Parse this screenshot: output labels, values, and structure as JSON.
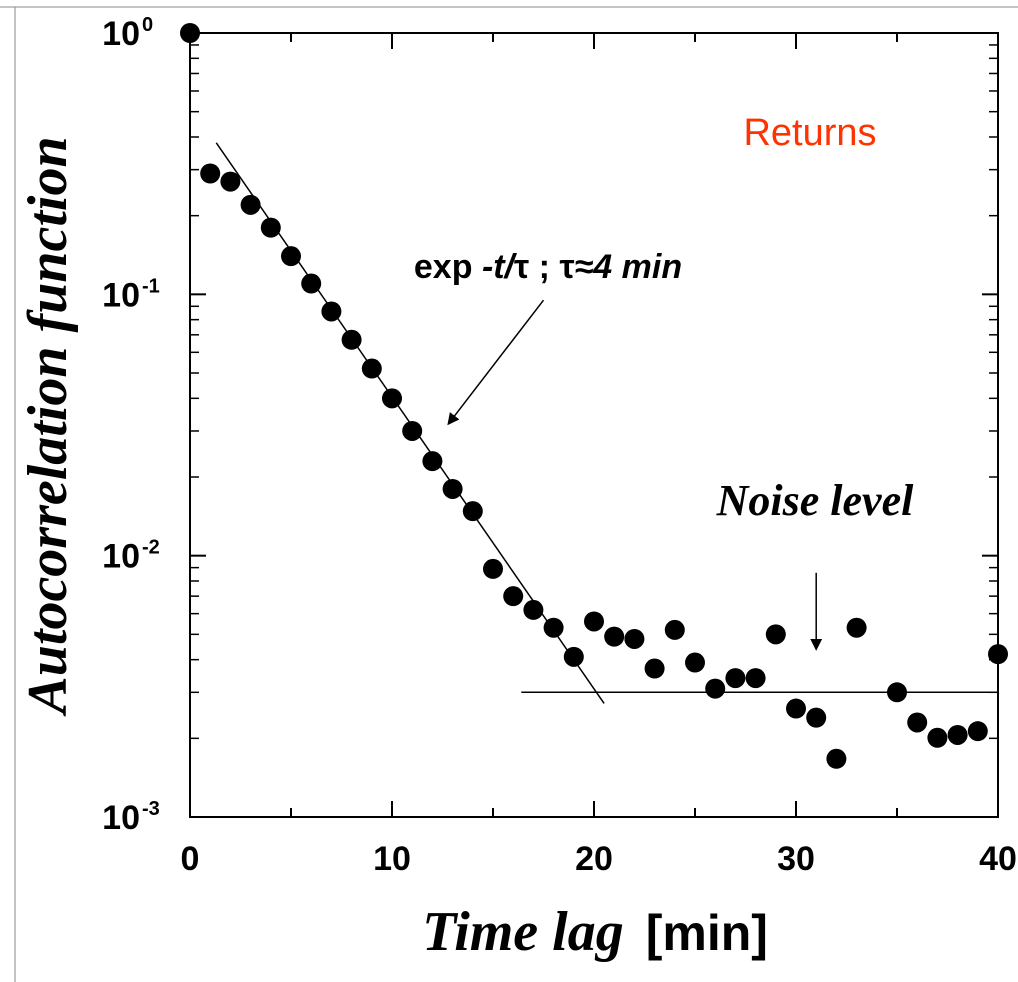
{
  "chart_data": {
    "type": "scatter",
    "xlabel": {
      "italic": "Time lag",
      "unit": "[min]"
    },
    "ylabel": "Autocorrelation function",
    "xlim": [
      0,
      40
    ],
    "ylim": [
      0.001,
      1
    ],
    "yscale": "log",
    "x_ticks": [
      "0",
      "10",
      "20",
      "30",
      "40"
    ],
    "y_ticks": [
      {
        "base": "10",
        "exp": "0"
      },
      {
        "base": "10",
        "exp": "-1"
      },
      {
        "base": "10",
        "exp": "-2"
      },
      {
        "base": "10",
        "exp": "-3"
      }
    ],
    "grid": false,
    "series": [
      {
        "name": "Returns",
        "color": "#ff3300",
        "marker_color": "#000000",
        "x": [
          0,
          1,
          2,
          3,
          4,
          5,
          6,
          7,
          8,
          9,
          10,
          11,
          12,
          13,
          14,
          15,
          16,
          17,
          18,
          19,
          20,
          21,
          22,
          23,
          24,
          25,
          26,
          27,
          28,
          29,
          30,
          31,
          32,
          33,
          35,
          36,
          37,
          38,
          39,
          40
        ],
        "y": [
          1.0,
          0.29,
          0.27,
          0.22,
          0.18,
          0.14,
          0.11,
          0.086,
          0.067,
          0.052,
          0.04,
          0.03,
          0.023,
          0.018,
          0.0148,
          0.0089,
          0.007,
          0.0062,
          0.0053,
          0.0041,
          0.0056,
          0.0049,
          0.0048,
          0.0037,
          0.0052,
          0.0039,
          0.0031,
          0.0034,
          0.0034,
          0.005,
          0.0026,
          0.0024,
          0.00167,
          0.0053,
          0.003,
          0.0023,
          0.00201,
          0.00206,
          0.00213,
          0.0042
        ]
      }
    ],
    "fit_line": {
      "x": [
        1.3,
        20.5
      ],
      "y": [
        0.38,
        0.00272
      ]
    },
    "noise_line": {
      "x": [
        16.4,
        40
      ],
      "y": [
        0.003,
        0.003
      ]
    },
    "annotations": {
      "fit_label": {
        "prefix": "exp ",
        "var": "-t/",
        "tau1": "τ",
        "mid": " ; ",
        "tau2": "τ",
        "approx": "≈4 min"
      },
      "fit_arrow": {
        "from": [
          17.5,
          0.095
        ],
        "to": [
          12.8,
          0.032
        ]
      },
      "noise_label": "Noise level",
      "noise_arrow": {
        "from": [
          31.0,
          0.0086
        ],
        "to": [
          31.0,
          0.0044
        ]
      }
    }
  }
}
